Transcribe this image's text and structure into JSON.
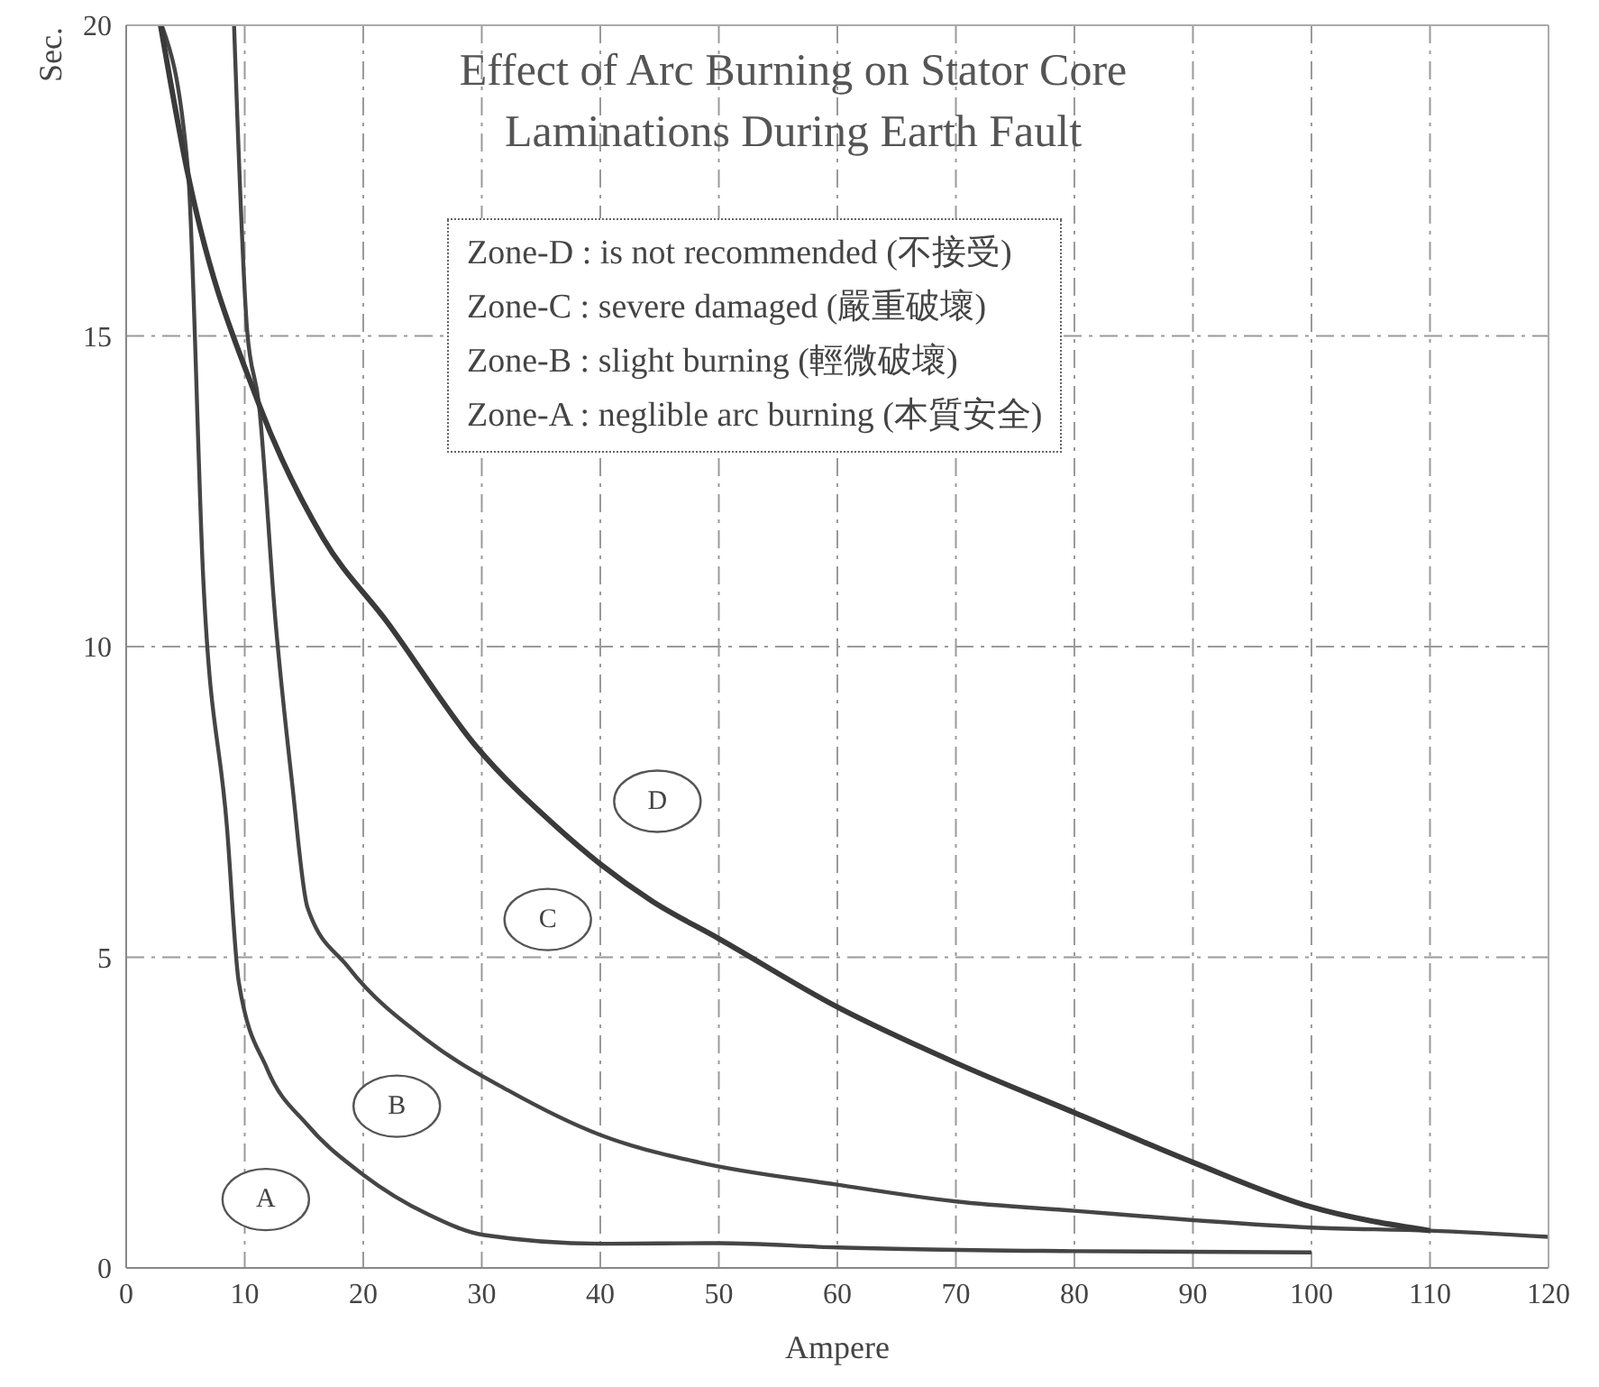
{
  "chart_data": {
    "type": "line",
    "title": "Effect of Arc Burning on Stator Core Laminations During Earth Fault",
    "xlabel": "Ampere",
    "ylabel": "Sec.",
    "xlim": [
      0,
      120
    ],
    "xticks": [
      0,
      10,
      20,
      30,
      40,
      50,
      60,
      70,
      80,
      90,
      100,
      110,
      120
    ],
    "ylim": [
      0,
      20
    ],
    "yticks": [
      0,
      5,
      10,
      15,
      20
    ],
    "grid": true,
    "legend": false,
    "marker": "none",
    "line_style": "solid",
    "series": [
      {
        "color": "#454545",
        "x": [
          3,
          5.2,
          6.5,
          8.5,
          9.5,
          11.9,
          15.3,
          20,
          25.5,
          30.2,
          40,
          50,
          60,
          80,
          100
        ],
        "values": [
          20,
          17.7,
          11.1,
          7.1,
          4.6,
          3.2,
          2.3,
          1.5,
          0.86,
          0.53,
          0.39,
          0.4,
          0.33,
          0.27,
          0.25
        ]
      },
      {
        "color": "#454545",
        "x": [
          9.1,
          10.2,
          11.2,
          12.6,
          14,
          15.3,
          18.7,
          25.5,
          32.2,
          40,
          48.3,
          60,
          70,
          80,
          90,
          100,
          110,
          120
        ],
        "values": [
          20,
          15.1,
          13.9,
          10.4,
          7.8,
          5.8,
          4.85,
          3.65,
          2.86,
          2.14,
          1.7,
          1.34,
          1.07,
          0.92,
          0.77,
          0.65,
          0.6,
          0.5
        ]
      },
      {
        "color": "#3a3a3a",
        "x": [
          2.9,
          5.1,
          11.2,
          16.6,
          22,
          29.5,
          36.3,
          40,
          44.4,
          50,
          60,
          70,
          80,
          90,
          100,
          110
        ],
        "values": [
          20,
          17.7,
          13.9,
          11.75,
          10.4,
          8.4,
          7.1,
          6.5,
          5.9,
          5.3,
          4.2,
          3.3,
          2.5,
          1.7,
          0.98,
          0.6
        ]
      }
    ],
    "annotations": [
      "Zone-D : is not recommended (不接受)",
      "Zone-C : severe damaged (嚴重破壞)",
      "Zone-B : slight burning (輕微破壞)",
      "Zone-A : neglible arc burning (本質安全)",
      "A",
      "B",
      "C",
      "D"
    ]
  }
}
